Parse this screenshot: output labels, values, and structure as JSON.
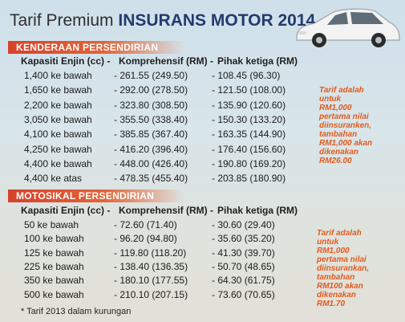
{
  "title": {
    "light": "Tarif Premium",
    "bold": "INSURANS MOTOR 2014"
  },
  "car_section": {
    "heading": "KENDERAAN PERSENDIRIAN",
    "col_engine": "Kapasiti Enjin (cc) -",
    "col_comp": "Komprehensif (RM) -",
    "col_third": "Pihak ketiga (RM)",
    "rows": [
      {
        "engine": "1,400 ke bawah",
        "comp": "261.55 (249.50)",
        "third": "108.45 (96.30)"
      },
      {
        "engine": "1,650 ke bawah",
        "comp": "292.00 (278.50)",
        "third": "121.50 (108.00)"
      },
      {
        "engine": "2,200 ke bawah",
        "comp": "323.80 (308.50)",
        "third": "135.90 (120.60)"
      },
      {
        "engine": "3,050 ke bawah",
        "comp": "355.50 (338.40)",
        "third": "150.30 (133.20)"
      },
      {
        "engine": "4,100 ke bawah",
        "comp": "385.85 (367.40)",
        "third": "163.35 (144.90)"
      },
      {
        "engine": "4,250 ke bawah",
        "comp": "416.20 (396.40)",
        "third": "176.40 (156.60)"
      },
      {
        "engine": "4,400 ke bawah",
        "comp": "448.00 (426.40)",
        "third": "190.80 (169.20)"
      },
      {
        "engine": "4,400 ke atas",
        "comp": "478.35 (455.40)",
        "third": "203.85 (180.90)"
      }
    ],
    "note": [
      "Tarif adalah",
      "untuk",
      "RM1,000",
      "pertama nilai",
      "diinsuranken,",
      "tambahan",
      "RM1,000 akan",
      "dikenakan",
      "RM26.00"
    ]
  },
  "moto_section": {
    "heading": "MOTOSIKAL PERSENDIRIAN",
    "col_engine": "Kapasiti Enjin (cc) -",
    "col_comp": "Komprehensif (RM) -",
    "col_third": "Pihak ketiga (RM)",
    "rows": [
      {
        "engine": "50 ke bawah",
        "comp": "72.60 (71.40)",
        "third": "30.60 (29.40)"
      },
      {
        "engine": "100 ke bawah",
        "comp": "96.20 (94.80)",
        "third": "35.60 (35.20)"
      },
      {
        "engine": "125 ke bawah",
        "comp": "119.80 (118.20)",
        "third": "41.30 (39.70)"
      },
      {
        "engine": "225 ke bawah",
        "comp": "138.40 (136.35)",
        "third": "50.70 (48.65)"
      },
      {
        "engine": "350 ke bawah",
        "comp": "180.10 (177.55)",
        "third": "64.30 (61.75)"
      },
      {
        "engine": "500 ke bawah",
        "comp": "210.10 (207.15)",
        "third": "73.60 (70.65)"
      }
    ],
    "note": [
      "Tarif adalah",
      "untuk",
      "RM1,000",
      "pertama nilai",
      "diinsurankan,",
      "tambahan",
      "RM100 akan",
      "dikenakan",
      "RM1.70"
    ]
  },
  "footnote": "* Tarif 2013 dalam kurungan",
  "colors": {
    "accent": "#e2653a",
    "title_blue": "#233a70",
    "note": "#e35a1c"
  },
  "icons": {
    "car": "car-illustration"
  }
}
